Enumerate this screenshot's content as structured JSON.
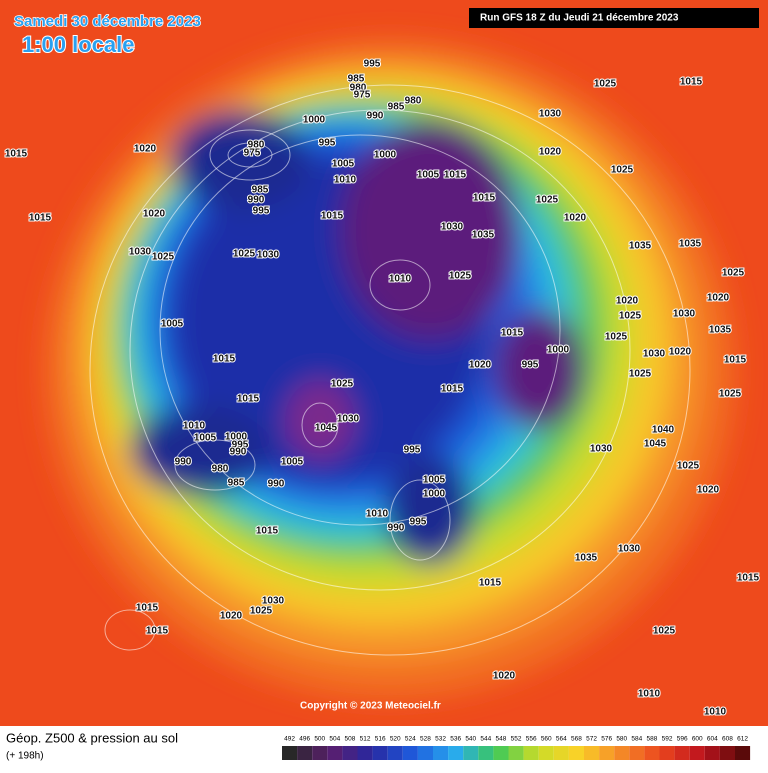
{
  "header": {
    "date": "Samedi 30 décembre 2023",
    "time": "1:00 locale",
    "run": "Run GFS 18 Z du Jeudi 21 décembre 2023"
  },
  "footer": {
    "copyright": "Copyright © 2023 Meteociel.fr",
    "field": "Géop. Z500 & pression au sol",
    "lead": "(+ 198h)"
  },
  "scale": [
    492,
    496,
    500,
    504,
    508,
    512,
    516,
    520,
    524,
    528,
    532,
    536,
    540,
    544,
    548,
    552,
    556,
    560,
    564,
    568,
    572,
    576,
    580,
    584,
    588,
    592,
    596,
    600,
    604,
    608,
    612
  ],
  "isobar_labels": [
    995,
    985,
    980,
    975,
    990,
    985,
    980,
    1000,
    1030,
    1025,
    1015,
    1015,
    1020,
    980,
    975,
    995,
    1000,
    1005,
    1010,
    1005,
    1015,
    1020,
    1025,
    985,
    990,
    995,
    1015,
    1025,
    1015,
    1020,
    1015,
    1020,
    1030,
    1035,
    1030,
    1025,
    1025,
    1030,
    1010,
    1025,
    1035,
    1035,
    1025,
    1020,
    1025,
    1020,
    1005,
    1015,
    1000,
    995,
    1020,
    1030,
    1035,
    1025,
    1030,
    1020,
    1015,
    1015,
    1025,
    1025,
    1015,
    1015,
    1025,
    1010,
    1030,
    1045,
    1005,
    1000,
    995,
    990,
    1040,
    1045,
    1030,
    995,
    990,
    980,
    1005,
    1025,
    985,
    990,
    1005,
    1000,
    1020,
    1010,
    990,
    995,
    1015,
    1035,
    1030,
    1015,
    1015,
    1030,
    1025,
    1015,
    1020,
    1015,
    1025,
    1020,
    1010,
    1010
  ]
}
